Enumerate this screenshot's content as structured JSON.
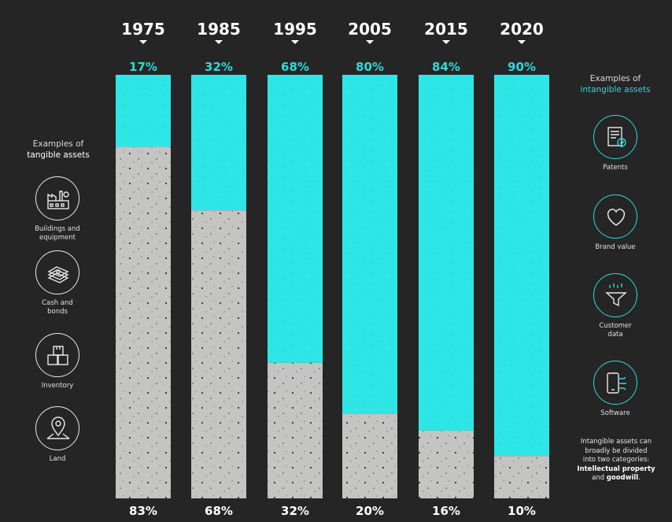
{
  "chart_data": {
    "type": "bar",
    "stacked": true,
    "ylim": [
      0,
      100
    ],
    "categories": [
      "1975",
      "1985",
      "1995",
      "2005",
      "2015",
      "2020"
    ],
    "series": [
      {
        "name": "intangible",
        "values": [
          17,
          32,
          68,
          80,
          84,
          90
        ],
        "color": "#2ee6e6"
      },
      {
        "name": "tangible",
        "values": [
          83,
          68,
          32,
          20,
          16,
          10
        ],
        "color": "#c4c4c2"
      }
    ],
    "top_labels": [
      "17%",
      "32%",
      "68%",
      "80%",
      "84%",
      "90%"
    ],
    "bottom_labels": [
      "83%",
      "68%",
      "32%",
      "20%",
      "16%",
      "10%"
    ]
  },
  "left_panel": {
    "heading_line1": "Examples of",
    "heading_line2": "tangible assets",
    "items": [
      {
        "icon": "factory-icon",
        "line1": "Buildings and",
        "line2": "equipment"
      },
      {
        "icon": "cash-stack-icon",
        "line1": "Cash and",
        "line2": "bonds"
      },
      {
        "icon": "boxes-icon",
        "line1": "Inventory",
        "line2": ""
      },
      {
        "icon": "map-pin-icon",
        "line1": "Land",
        "line2": ""
      }
    ]
  },
  "right_panel": {
    "heading_line1": "Examples of",
    "heading_line2": "intangible assets",
    "items": [
      {
        "icon": "certificate-icon",
        "line1": "Patents",
        "line2": ""
      },
      {
        "icon": "heart-icon",
        "line1": "Brand value",
        "line2": ""
      },
      {
        "icon": "funnel-icon",
        "line1": "Customer",
        "line2": "data"
      },
      {
        "icon": "phone-circuit-icon",
        "line1": "Software",
        "line2": ""
      }
    ],
    "note_line1": "Intangible assets can",
    "note_line2": "broadly be divided",
    "note_line3": "into two categories:",
    "note_em1": "Intellectual property",
    "note_and": "and",
    "note_em2": "goodwill",
    "note_end": "."
  },
  "colors": {
    "background": "#252525",
    "intangible": "#2ee6e6",
    "tangible": "#c4c4c2",
    "accent_text": "#2fd9d9"
  }
}
